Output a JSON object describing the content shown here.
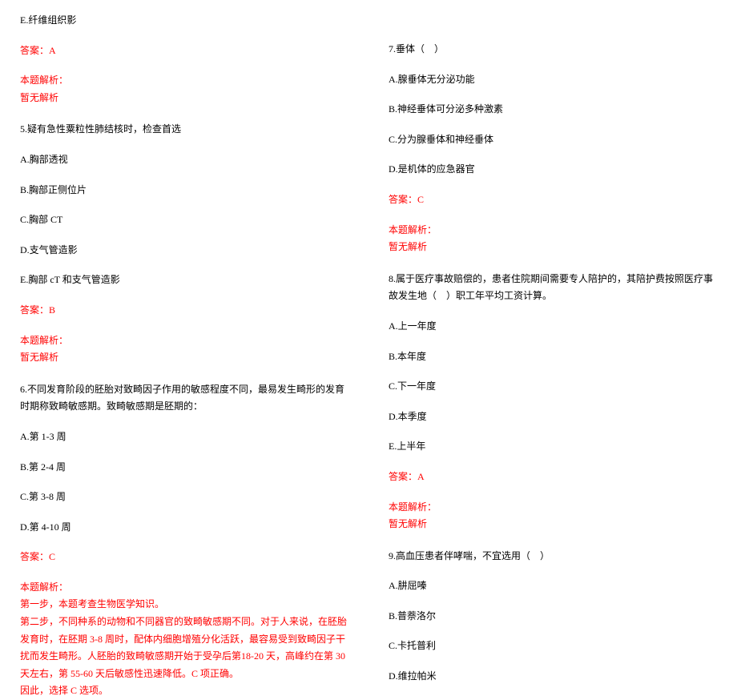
{
  "colors": {
    "text": "#000000",
    "answer": "#ff0000",
    "background": "#ffffff"
  },
  "typography": {
    "fontsize": 12,
    "font_family": "SimSun",
    "line_height": 1.8
  },
  "left_column": {
    "q4_optE": "E.纤维组织影",
    "q4_answer": "答案：A",
    "q4_analysis_label": "本题解析：",
    "q4_analysis_text": "暂无解析",
    "q5_stem": "5.疑有急性粟粒性肺结核时，检查首选",
    "q5_optA": "A.胸部透视",
    "q5_optB": "B.胸部正侧位片",
    "q5_optC": "C.胸部 CT",
    "q5_optD": "D.支气管造影",
    "q5_optE": "E.胸部 cT 和支气管造影",
    "q5_answer": "答案：B",
    "q5_analysis_label": "本题解析：",
    "q5_analysis_text": "暂无解析",
    "q6_stem": "6.不同发育阶段的胚胎对致畸因子作用的敏感程度不同，最易发生畸形的发育时期称致畸敏感期。致畸敏感期是胚期的：",
    "q6_optA": "A.第 1-3 周",
    "q6_optB": "B.第 2-4 周",
    "q6_optC": "C.第 3-8 周",
    "q6_optD": "D.第 4-10 周",
    "q6_answer": "答案：C",
    "q6_analysis_label": "本题解析：",
    "q6_analysis_line1": "第一步，本题考查生物医学知识。",
    "q6_analysis_line2": "第二步，不同种系的动物和不同器官的致畸敏感期不同。对于人来说，在胚胎发育时，在胚期 3-8 周时，配体内细胞增殖分化活跃，最容易受到致畸因子干扰而发生畸形。人胚胎的致畸敏感期开始于受孕后第18-20 天，高峰约在第 30 天左右，第 55-60 天后敏感性迅速降低。C 项正确。",
    "q6_analysis_line3": "因此，选择 C 选项。"
  },
  "right_column": {
    "q7_stem": "7.垂体（　）",
    "q7_optA": "A.腺垂体无分泌功能",
    "q7_optB": "B.神经垂体可分泌多种激素",
    "q7_optC": "C.分为腺垂体和神经垂体",
    "q7_optD": "D.是机体的应急器官",
    "q7_answer": "答案：C",
    "q7_analysis_label": "本题解析：",
    "q7_analysis_text": "暂无解析",
    "q8_stem": "8.属于医疗事故赔偿的，患者住院期间需要专人陪护的，其陪护费按照医疗事故发生地（　）职工年平均工资计算。",
    "q8_optA": "A.上一年度",
    "q8_optB": "B.本年度",
    "q8_optC": "C.下一年度",
    "q8_optD": "D.本季度",
    "q8_optE": "E.上半年",
    "q8_answer": "答案：A",
    "q8_analysis_label": "本题解析：",
    "q8_analysis_text": "暂无解析",
    "q9_stem": "9.高血压患者伴哮喘，不宜选用（　）",
    "q9_optA": "A.肼屈嗪",
    "q9_optB": "B.普萘洛尔",
    "q9_optC": "C.卡托普利",
    "q9_optD": "D.维拉帕米"
  }
}
